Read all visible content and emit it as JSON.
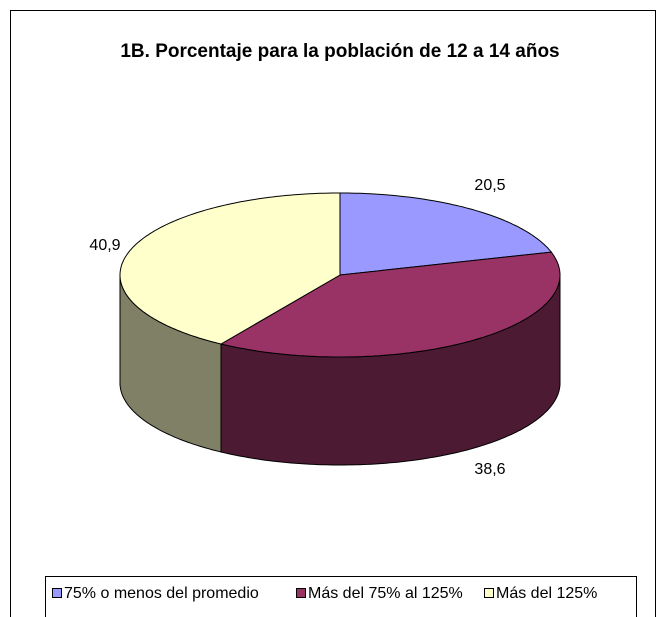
{
  "chart_data": {
    "type": "pie3d",
    "title": "1B. Porcentaje para la población de 12 a 14 años",
    "categories": [
      "75% o menos del promedio",
      "Más del 75% al 125%",
      "Más del 125%"
    ],
    "values": [
      20.5,
      38.6,
      40.9
    ],
    "value_labels": [
      "20,5",
      "38,6",
      "40,9"
    ],
    "colors": [
      "#9999ff",
      "#993366",
      "#ffffcc"
    ],
    "legend": "bottom"
  }
}
